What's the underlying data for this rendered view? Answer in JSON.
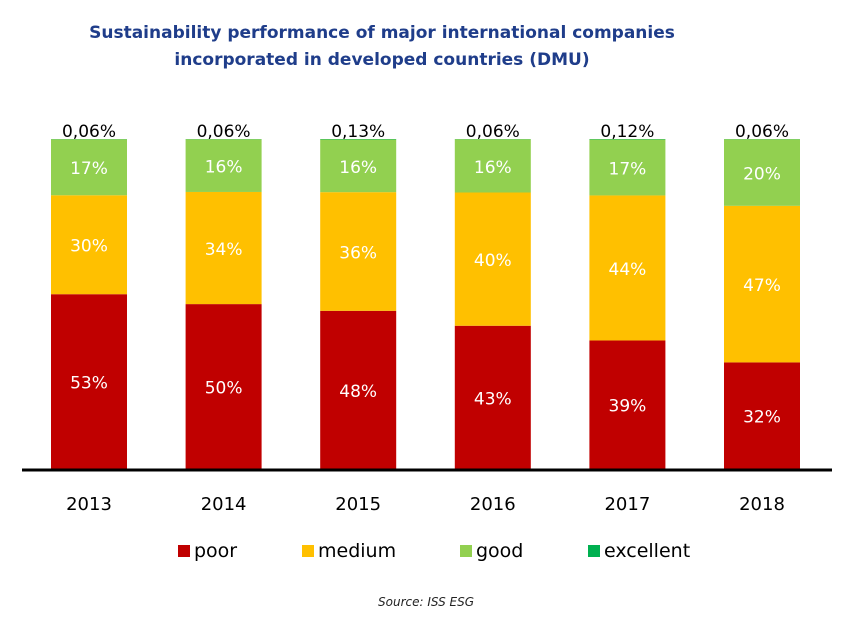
{
  "chart_data": {
    "type": "bar",
    "stacked": true,
    "title": "Sustainability performance of major international companies incorporated in developed countries (DMU)",
    "title_lines": [
      "Sustainability performance of major international companies",
      "incorporated in developed countries (DMU)"
    ],
    "categories": [
      "2013",
      "2014",
      "2015",
      "2016",
      "2017",
      "2018"
    ],
    "series": [
      {
        "name": "poor",
        "color": "#C00000",
        "values": [
          53,
          50,
          48,
          43,
          39,
          32
        ],
        "labels": [
          "53%",
          "50%",
          "48%",
          "43%",
          "39%",
          "32%"
        ]
      },
      {
        "name": "medium",
        "color": "#FFC000",
        "values": [
          30,
          34,
          36,
          40,
          44,
          47
        ],
        "labels": [
          "30%",
          "34%",
          "36%",
          "40%",
          "44%",
          "47%"
        ]
      },
      {
        "name": "good",
        "color": "#92D050",
        "values": [
          17,
          16,
          16,
          16,
          17,
          20
        ],
        "labels": [
          "17%",
          "16%",
          "16%",
          "16%",
          "17%",
          "20%"
        ]
      },
      {
        "name": "excellent",
        "color": "#00B050",
        "values": [
          0.06,
          0.06,
          0.13,
          0.06,
          0.12,
          0.06
        ],
        "labels": [
          "0,06%",
          "0,06%",
          "0,13%",
          "0,06%",
          "0,12%",
          "0,06%"
        ]
      }
    ],
    "xlabel": "",
    "ylabel": "",
    "ylim": [
      0,
      100
    ],
    "grid": false,
    "legend_position": "bottom",
    "source": "Source: ISS ESG"
  }
}
